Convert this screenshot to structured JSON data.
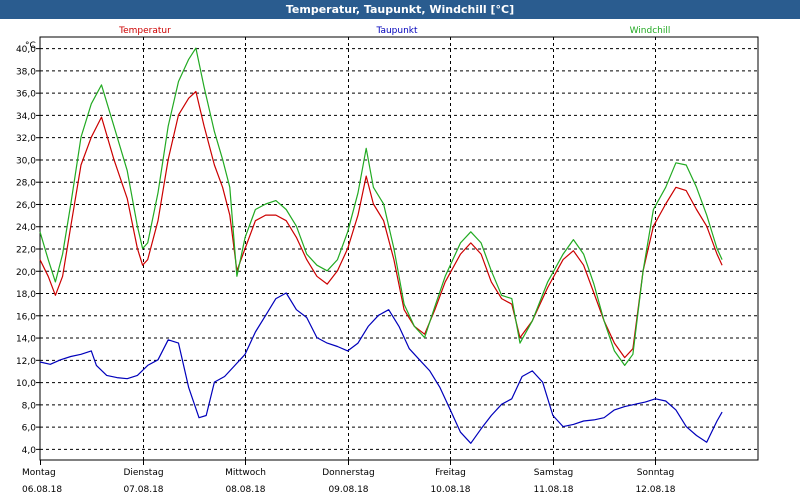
{
  "window": {
    "title": "Temperatur, Taupunkt, Windchill [°C]"
  },
  "chart_data": {
    "type": "line",
    "title": "Temperatur, Taupunkt, Windchill [°C]",
    "ylabel": "°C",
    "ylim": [
      3,
      41
    ],
    "yticks": [
      "4,0",
      "6,0",
      "8,0",
      "10,0",
      "12,0",
      "14,0",
      "16,0",
      "18,0",
      "20,0",
      "22,0",
      "24,0",
      "26,0",
      "28,0",
      "30,0",
      "32,0",
      "34,0",
      "36,0",
      "38,0",
      "40,0"
    ],
    "xlim": [
      0,
      7
    ],
    "days": [
      {
        "day": "Montag",
        "date": "06.08.18"
      },
      {
        "day": "Dienstag",
        "date": "07.08.18"
      },
      {
        "day": "Mittwoch",
        "date": "08.08.18"
      },
      {
        "day": "Donnerstag",
        "date": "09.08.18"
      },
      {
        "day": "Freitag",
        "date": "10.08.18"
      },
      {
        "day": "Samstag",
        "date": "11.08.18"
      },
      {
        "day": "Sonntag",
        "date": "12.08.18"
      }
    ],
    "grid": true,
    "series": [
      {
        "name": "Temperatur",
        "color": "#cc0000",
        "points": [
          [
            0,
            21
          ],
          [
            0.08,
            19.5
          ],
          [
            0.15,
            17.8
          ],
          [
            0.22,
            19.5
          ],
          [
            0.3,
            24
          ],
          [
            0.4,
            29.5
          ],
          [
            0.5,
            32
          ],
          [
            0.6,
            33.8
          ],
          [
            0.72,
            30
          ],
          [
            0.85,
            26.5
          ],
          [
            0.95,
            22
          ],
          [
            1.0,
            20.5
          ],
          [
            1.05,
            21
          ],
          [
            1.15,
            24.5
          ],
          [
            1.25,
            30
          ],
          [
            1.35,
            34
          ],
          [
            1.45,
            35.5
          ],
          [
            1.52,
            36.1
          ],
          [
            1.6,
            33
          ],
          [
            1.7,
            29.5
          ],
          [
            1.78,
            27.5
          ],
          [
            1.85,
            25
          ],
          [
            1.92,
            20
          ],
          [
            2.0,
            22
          ],
          [
            2.1,
            24.5
          ],
          [
            2.2,
            25
          ],
          [
            2.3,
            25
          ],
          [
            2.4,
            24.5
          ],
          [
            2.5,
            23
          ],
          [
            2.6,
            21
          ],
          [
            2.7,
            19.5
          ],
          [
            2.8,
            18.8
          ],
          [
            2.9,
            20
          ],
          [
            3.0,
            22
          ],
          [
            3.1,
            25
          ],
          [
            3.18,
            28.5
          ],
          [
            3.25,
            26
          ],
          [
            3.35,
            24.5
          ],
          [
            3.45,
            21
          ],
          [
            3.55,
            16.5
          ],
          [
            3.65,
            15
          ],
          [
            3.75,
            14.3
          ],
          [
            3.85,
            16.5
          ],
          [
            3.95,
            19
          ],
          [
            4.1,
            21.5
          ],
          [
            4.2,
            22.5
          ],
          [
            4.3,
            21.5
          ],
          [
            4.4,
            19
          ],
          [
            4.5,
            17.5
          ],
          [
            4.6,
            17
          ],
          [
            4.68,
            14
          ],
          [
            4.8,
            15.5
          ],
          [
            4.95,
            18.5
          ],
          [
            5.1,
            21
          ],
          [
            5.2,
            21.8
          ],
          [
            5.3,
            20.5
          ],
          [
            5.4,
            18
          ],
          [
            5.5,
            15.5
          ],
          [
            5.6,
            13.5
          ],
          [
            5.7,
            12.2
          ],
          [
            5.78,
            13
          ],
          [
            5.88,
            20
          ],
          [
            5.98,
            24
          ],
          [
            6.1,
            26
          ],
          [
            6.2,
            27.5
          ],
          [
            6.3,
            27.2
          ],
          [
            6.4,
            25.5
          ],
          [
            6.5,
            24
          ],
          [
            6.6,
            21.5
          ],
          [
            6.65,
            20.5
          ]
        ]
      },
      {
        "name": "Taupunkt",
        "color": "#0000bb",
        "points": [
          [
            0,
            11.8
          ],
          [
            0.1,
            11.6
          ],
          [
            0.2,
            12
          ],
          [
            0.3,
            12.3
          ],
          [
            0.4,
            12.5
          ],
          [
            0.5,
            12.8
          ],
          [
            0.55,
            11.5
          ],
          [
            0.65,
            10.6
          ],
          [
            0.75,
            10.4
          ],
          [
            0.85,
            10.3
          ],
          [
            0.95,
            10.6
          ],
          [
            1.05,
            11.5
          ],
          [
            1.15,
            12
          ],
          [
            1.25,
            13.8
          ],
          [
            1.35,
            13.5
          ],
          [
            1.45,
            9.5
          ],
          [
            1.55,
            6.8
          ],
          [
            1.62,
            7
          ],
          [
            1.7,
            10
          ],
          [
            1.8,
            10.5
          ],
          [
            1.9,
            11.5
          ],
          [
            2.0,
            12.5
          ],
          [
            2.1,
            14.5
          ],
          [
            2.2,
            16
          ],
          [
            2.3,
            17.5
          ],
          [
            2.4,
            18
          ],
          [
            2.5,
            16.5
          ],
          [
            2.6,
            15.8
          ],
          [
            2.7,
            14
          ],
          [
            2.8,
            13.5
          ],
          [
            2.9,
            13.2
          ],
          [
            3.0,
            12.8
          ],
          [
            3.1,
            13.5
          ],
          [
            3.2,
            15
          ],
          [
            3.3,
            16
          ],
          [
            3.4,
            16.5
          ],
          [
            3.5,
            15
          ],
          [
            3.6,
            13
          ],
          [
            3.7,
            12
          ],
          [
            3.8,
            11
          ],
          [
            3.9,
            9.5
          ],
          [
            4.0,
            7.5
          ],
          [
            4.1,
            5.5
          ],
          [
            4.2,
            4.5
          ],
          [
            4.3,
            5.8
          ],
          [
            4.4,
            7
          ],
          [
            4.5,
            8
          ],
          [
            4.6,
            8.5
          ],
          [
            4.7,
            10.5
          ],
          [
            4.8,
            11
          ],
          [
            4.9,
            10
          ],
          [
            5.0,
            7
          ],
          [
            5.1,
            6
          ],
          [
            5.2,
            6.2
          ],
          [
            5.3,
            6.5
          ],
          [
            5.4,
            6.6
          ],
          [
            5.5,
            6.8
          ],
          [
            5.6,
            7.5
          ],
          [
            5.7,
            7.8
          ],
          [
            5.8,
            8
          ],
          [
            5.9,
            8.2
          ],
          [
            6.0,
            8.5
          ],
          [
            6.1,
            8.3
          ],
          [
            6.2,
            7.5
          ],
          [
            6.3,
            6
          ],
          [
            6.4,
            5.2
          ],
          [
            6.5,
            4.6
          ],
          [
            6.6,
            6.5
          ],
          [
            6.65,
            7.3
          ]
        ]
      },
      {
        "name": "Windchill",
        "color": "#22aa22",
        "points": [
          [
            0,
            23.5
          ],
          [
            0.08,
            21
          ],
          [
            0.15,
            19
          ],
          [
            0.22,
            21.5
          ],
          [
            0.3,
            26
          ],
          [
            0.4,
            32
          ],
          [
            0.5,
            35
          ],
          [
            0.6,
            36.7
          ],
          [
            0.72,
            33
          ],
          [
            0.85,
            29
          ],
          [
            0.95,
            24
          ],
          [
            1.0,
            22
          ],
          [
            1.05,
            22.5
          ],
          [
            1.15,
            27
          ],
          [
            1.25,
            33
          ],
          [
            1.35,
            37
          ],
          [
            1.45,
            39
          ],
          [
            1.52,
            40
          ],
          [
            1.6,
            36.5
          ],
          [
            1.7,
            32.5
          ],
          [
            1.78,
            30
          ],
          [
            1.85,
            27.5
          ],
          [
            1.92,
            19.5
          ],
          [
            2.0,
            23
          ],
          [
            2.1,
            25.5
          ],
          [
            2.2,
            26
          ],
          [
            2.3,
            26.3
          ],
          [
            2.4,
            25.5
          ],
          [
            2.5,
            24
          ],
          [
            2.6,
            21.5
          ],
          [
            2.7,
            20.5
          ],
          [
            2.8,
            20
          ],
          [
            2.9,
            21
          ],
          [
            3.0,
            23.5
          ],
          [
            3.1,
            27
          ],
          [
            3.18,
            31
          ],
          [
            3.25,
            27.5
          ],
          [
            3.35,
            26
          ],
          [
            3.45,
            22
          ],
          [
            3.55,
            17
          ],
          [
            3.65,
            15
          ],
          [
            3.75,
            14
          ],
          [
            3.85,
            16.8
          ],
          [
            3.95,
            19.5
          ],
          [
            4.1,
            22.5
          ],
          [
            4.2,
            23.5
          ],
          [
            4.3,
            22.5
          ],
          [
            4.4,
            20
          ],
          [
            4.5,
            17.8
          ],
          [
            4.6,
            17.5
          ],
          [
            4.68,
            13.5
          ],
          [
            4.8,
            15.5
          ],
          [
            4.95,
            19
          ],
          [
            5.1,
            21.5
          ],
          [
            5.2,
            22.8
          ],
          [
            5.3,
            21.5
          ],
          [
            5.4,
            18.8
          ],
          [
            5.5,
            15.5
          ],
          [
            5.6,
            12.8
          ],
          [
            5.7,
            11.5
          ],
          [
            5.78,
            12.5
          ],
          [
            5.88,
            20
          ],
          [
            5.98,
            25.5
          ],
          [
            6.1,
            27.5
          ],
          [
            6.2,
            29.7
          ],
          [
            6.3,
            29.5
          ],
          [
            6.4,
            27.5
          ],
          [
            6.5,
            25
          ],
          [
            6.6,
            22
          ],
          [
            6.65,
            21
          ]
        ]
      }
    ]
  }
}
